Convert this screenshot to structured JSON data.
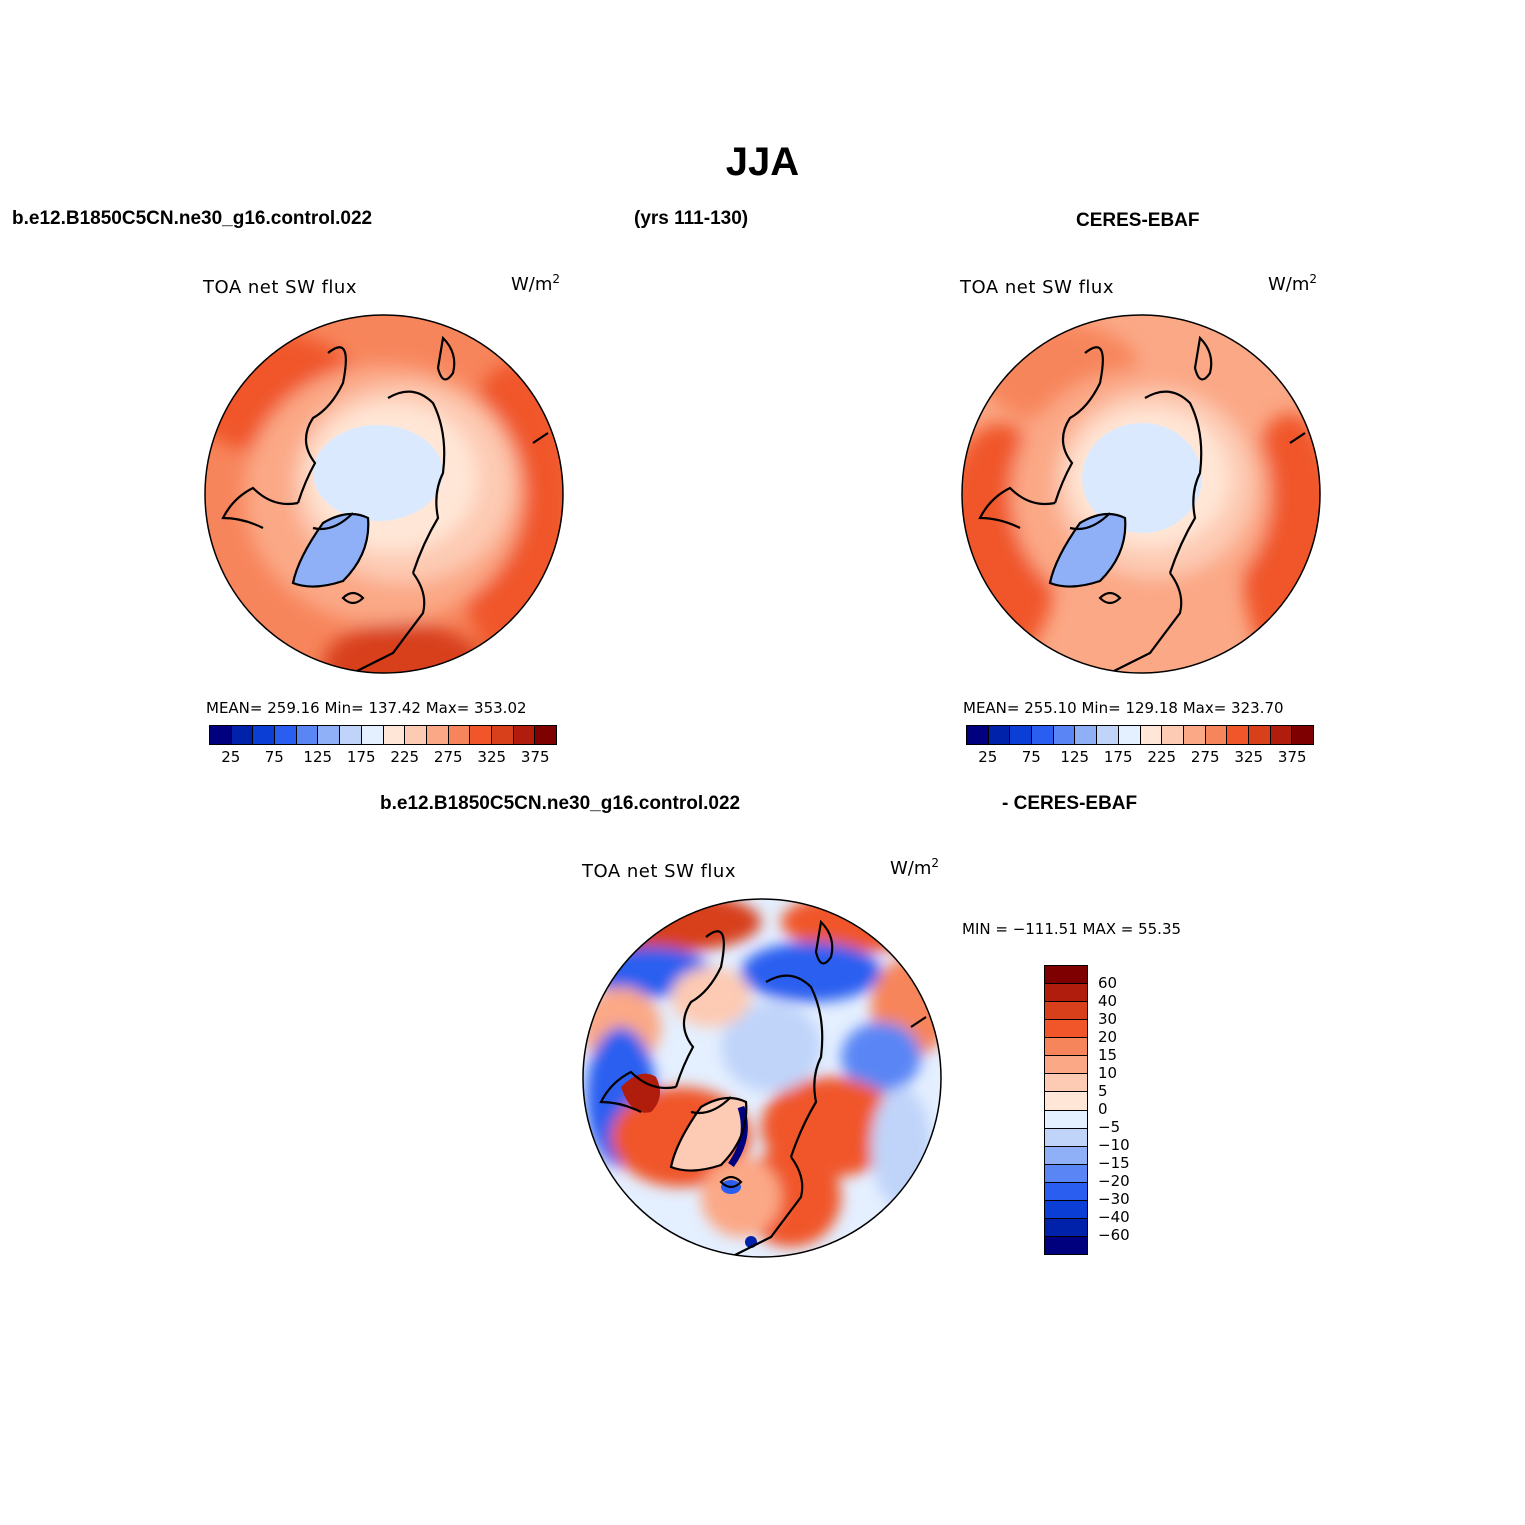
{
  "title": "JJA",
  "header": {
    "case_name": "b.e12.B1850C5CN.ne30_g16.control.022",
    "years": "(yrs 111-130)",
    "obs_name": "CERES-EBAF",
    "diff_case": "b.e12.B1850C5CN.ne30_g16.control.022",
    "diff_obs": "- CERES-EBAF"
  },
  "panels": {
    "model": {
      "variable": "TOA net SW flux",
      "units": "W/m",
      "units_exp": "2",
      "stats": "MEAN= 259.16   Min= 137.42   Max= 353.02"
    },
    "obs": {
      "variable": "TOA net SW flux",
      "units": "W/m",
      "units_exp": "2",
      "stats": "MEAN= 255.10   Min= 129.18   Max= 323.70"
    },
    "diff": {
      "variable": "TOA net SW flux",
      "units": "W/m",
      "units_exp": "2",
      "stats": "MIN = −111.51  MAX =   55.35"
    }
  },
  "colorbar_abs": {
    "ticks": [
      "25",
      "75",
      "125",
      "175",
      "225",
      "275",
      "325",
      "375"
    ],
    "colors": [
      "#00007f",
      "#0022aa",
      "#0b3ed5",
      "#2a5ef0",
      "#5a86f5",
      "#8fb0f7",
      "#c0d4fa",
      "#e4efff",
      "#ffe6d6",
      "#fdcab3",
      "#fba886",
      "#f7855c",
      "#f0562a",
      "#d8401b",
      "#b01d0c",
      "#7f0000"
    ]
  },
  "colorbar_diff": {
    "ticks": [
      "60",
      "40",
      "30",
      "20",
      "15",
      "10",
      "5",
      "0",
      "−5",
      "−10",
      "−15",
      "−20",
      "−30",
      "−40",
      "−60"
    ],
    "colors": [
      "#7f0000",
      "#b01d0c",
      "#d8401b",
      "#f0562a",
      "#f7855c",
      "#fba886",
      "#fdcab3",
      "#ffe6d6",
      "#e4efff",
      "#c0d4fa",
      "#8fb0f7",
      "#5a86f5",
      "#2a5ef0",
      "#0b3ed5",
      "#0022aa",
      "#00007f"
    ]
  }
}
